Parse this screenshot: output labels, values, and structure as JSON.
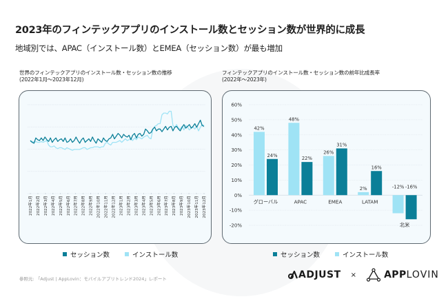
{
  "header": {
    "title": "2023年のフィンテックアプリのインストール数とセッション数が世界的に成長",
    "subtitle": "地域別では、APAC（インストール数）とEMEA（セッション数）が最も増加"
  },
  "colors": {
    "sessions": "#0b7f98",
    "installs": "#9fe3f5",
    "panel_bg": "#f4fafd",
    "panel_border": "#5d6870"
  },
  "legend": {
    "sessions_label": "セッション数",
    "installs_label": "インストール数"
  },
  "footer": {
    "source": "参照元: 「Adjust | AppLovin：モバイルアプリトレンド2024」レポート",
    "logo_adjust": "ADJUST",
    "logo_times": "×",
    "logo_applovin_bold": "APP",
    "logo_applovin_light": "LOVIN"
  },
  "chart_data": [
    {
      "type": "line",
      "title": "世界のフィンテックアプリのインストール数・セッション数の推移\n(2022年1月〜2023年12月)",
      "xlabel": "",
      "ylabel": "",
      "grid": true,
      "legend_position": "bottom",
      "ylim": [
        0,
        100
      ],
      "categories": [
        "2022年1月",
        "2022年2月",
        "2022年3月",
        "2022年4月",
        "2022年5月",
        "2022年6月",
        "2022年7月",
        "2022年8月",
        "2022年9月",
        "2022年10月",
        "2022年11月",
        "2022年12月",
        "2023年1月",
        "2023年2月",
        "2023年3月",
        "2023年4月",
        "2023年5月",
        "2023年6月",
        "2023年7月",
        "2023年8月",
        "2023年9月",
        "2023年10月",
        "2023年11月",
        "2023年12月"
      ],
      "points_per_month": 4,
      "series": [
        {
          "name": "セッション数",
          "values": [
            55,
            53,
            52,
            58,
            56,
            55,
            58,
            55,
            59,
            56,
            54,
            58,
            53,
            56,
            58,
            54,
            56,
            57,
            54,
            58,
            53,
            54,
            57,
            53,
            55,
            59,
            55,
            52,
            56,
            58,
            53,
            55,
            57,
            54,
            59,
            55,
            52,
            57,
            55,
            53,
            58,
            55,
            54,
            57,
            58,
            62,
            57,
            60,
            63,
            61,
            58,
            62,
            60,
            59,
            61,
            56,
            61,
            63,
            58,
            62,
            63,
            60,
            62,
            68,
            66,
            63,
            64,
            68,
            70,
            66,
            68,
            68,
            65,
            68,
            71,
            67,
            70,
            71,
            66,
            70,
            71,
            68,
            66,
            70,
            73,
            69,
            71,
            73,
            69,
            71,
            74,
            70,
            74,
            78,
            72,
            71
          ],
          "ylim_note": "relative index, axis unlabeled"
        },
        {
          "name": "インストール数",
          "values": [
            54,
            54,
            53,
            54,
            53,
            53,
            54,
            53,
            54,
            55,
            50,
            48,
            48,
            49,
            47,
            46,
            47,
            47,
            46,
            45,
            47,
            46,
            45,
            44,
            45,
            45,
            45,
            45,
            46,
            47,
            47,
            45,
            46,
            47,
            47,
            48,
            48,
            48,
            47,
            48,
            48,
            52,
            53,
            51,
            50,
            53,
            53,
            53,
            54,
            55,
            53,
            55,
            57,
            55,
            56,
            57,
            55,
            58,
            56,
            59,
            58,
            57,
            59,
            60,
            61,
            58,
            57,
            67,
            71,
            72,
            74,
            74,
            84,
            86,
            86,
            85,
            88,
            88,
            72,
            70,
            73,
            69,
            68,
            71,
            67,
            72,
            70,
            67,
            69,
            70,
            68,
            71,
            66,
            70,
            73,
            72
          ]
        }
      ]
    },
    {
      "type": "bar",
      "title": "フィンテックアプリのインストール数・セッション数の前年比成長率\n(2022年〜2023年)",
      "xlabel": "",
      "ylabel": "",
      "grid": true,
      "legend_position": "bottom",
      "ylim": [
        -20,
        60
      ],
      "yticks": [
        "60%",
        "50%",
        "40%",
        "30%",
        "20%",
        "10%",
        "0%",
        "-10%",
        "-20%"
      ],
      "ytick_values": [
        60,
        50,
        40,
        30,
        20,
        10,
        0,
        -10,
        -20
      ],
      "categories": [
        "グローバル",
        "APAC",
        "EMEA",
        "LATAM",
        "北米"
      ],
      "series": [
        {
          "name": "インストール数",
          "values": [
            42,
            48,
            26,
            2,
            -12
          ],
          "labels": [
            "42%",
            "48%",
            "26%",
            "2%",
            "-12%"
          ]
        },
        {
          "name": "セッション数",
          "values": [
            24,
            22,
            31,
            16,
            -16
          ],
          "labels": [
            "24%",
            "22%",
            "31%",
            "16%",
            "-16%"
          ]
        }
      ]
    }
  ]
}
